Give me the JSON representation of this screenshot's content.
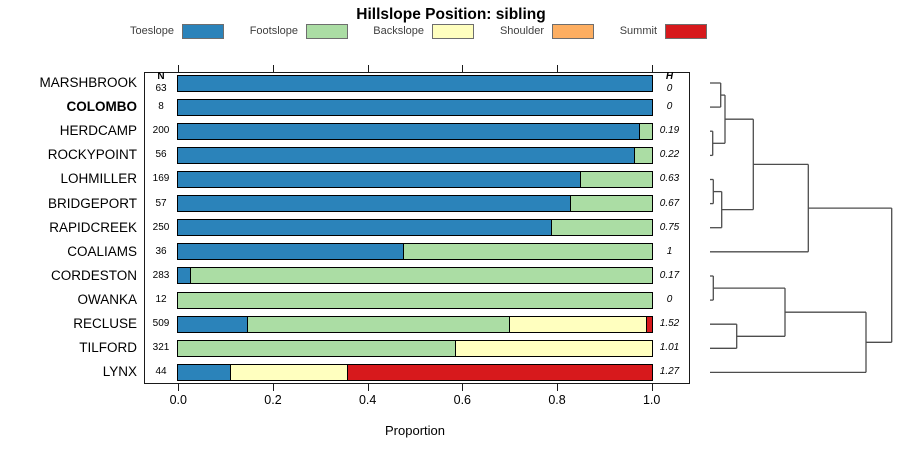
{
  "title": "Hillslope Position: sibling",
  "chart_data": {
    "type": "bar",
    "orientation": "horizontal-stacked",
    "title": "Hillslope Position: sibling",
    "xlabel": "Proportion",
    "xlim": [
      0,
      1
    ],
    "x_ticks": [
      "0.0",
      "0.2",
      "0.4",
      "0.6",
      "0.8",
      "1.0"
    ],
    "x_tick_values": [
      0,
      0.2,
      0.4,
      0.6,
      0.8,
      1.0
    ],
    "grid": false,
    "legend_position": "top",
    "classes": [
      {
        "label": "Toeslope",
        "color": "#2B83BA"
      },
      {
        "label": "Footslope",
        "color": "#ABDDA4"
      },
      {
        "label": "Backslope",
        "color": "#FFFFBF"
      },
      {
        "label": "Shoulder",
        "color": "#FDAE61"
      },
      {
        "label": "Summit",
        "color": "#D7191C"
      }
    ],
    "columns": {
      "n_header": "N",
      "h_header": "H"
    },
    "rows": [
      {
        "name": "MARSHBROOK",
        "bold": false,
        "n": 63,
        "h": "0",
        "proportions": [
          1,
          0,
          0,
          0,
          0
        ]
      },
      {
        "name": "COLOMBO",
        "bold": true,
        "n": 8,
        "h": "0",
        "proportions": [
          1,
          0,
          0,
          0,
          0
        ]
      },
      {
        "name": "HERDCAMP",
        "bold": false,
        "n": 200,
        "h": "0.19",
        "proportions": [
          0.975,
          0.025,
          0,
          0,
          0
        ]
      },
      {
        "name": "ROCKYPOINT",
        "bold": false,
        "n": 56,
        "h": "0.22",
        "proportions": [
          0.965,
          0.035,
          0,
          0,
          0
        ]
      },
      {
        "name": "LOHMILLER",
        "bold": false,
        "n": 169,
        "h": "0.63",
        "proportions": [
          0.85,
          0.15,
          0,
          0,
          0
        ]
      },
      {
        "name": "BRIDGEPORT",
        "bold": false,
        "n": 57,
        "h": "0.67",
        "proportions": [
          0.83,
          0.17,
          0,
          0,
          0
        ]
      },
      {
        "name": "RAPIDCREEK",
        "bold": false,
        "n": 250,
        "h": "0.75",
        "proportions": [
          0.79,
          0.21,
          0,
          0,
          0
        ]
      },
      {
        "name": "COALIAMS",
        "bold": false,
        "n": 36,
        "h": "1",
        "proportions": [
          0.475,
          0.525,
          0,
          0,
          0
        ]
      },
      {
        "name": "CORDESTON",
        "bold": false,
        "n": 283,
        "h": "0.17",
        "proportions": [
          0.025,
          0.975,
          0,
          0,
          0
        ]
      },
      {
        "name": "OWANKA",
        "bold": false,
        "n": 12,
        "h": "0",
        "proportions": [
          0,
          1,
          0,
          0,
          0
        ]
      },
      {
        "name": "RECLUSE",
        "bold": false,
        "n": 509,
        "h": "1.52",
        "proportions": [
          0.145,
          0.555,
          0.29,
          0,
          0.01
        ]
      },
      {
        "name": "TILFORD",
        "bold": false,
        "n": 321,
        "h": "1.01",
        "proportions": [
          0,
          0.585,
          0.415,
          0,
          0
        ]
      },
      {
        "name": "LYNX",
        "bold": false,
        "n": 44,
        "h": "1.27",
        "proportions": [
          0.11,
          0,
          0.245,
          0,
          0.645
        ]
      }
    ],
    "dendrogram": {
      "stroke": "#4d4d4d",
      "segments": [
        [
          10,
          23,
          20.7,
          23
        ],
        [
          10,
          47.1,
          20.7,
          47.1
        ],
        [
          20.7,
          23,
          20.7,
          47.1
        ],
        [
          20.7,
          35.1,
          25,
          35.1
        ],
        [
          10,
          71.2,
          12.7,
          71.2
        ],
        [
          10,
          95.4,
          12.7,
          95.4
        ],
        [
          12.7,
          71.2,
          12.7,
          95.4
        ],
        [
          12.7,
          83.3,
          25,
          83.3
        ],
        [
          25,
          35.1,
          25,
          83.3
        ],
        [
          25,
          59.2,
          53.3,
          59.2
        ],
        [
          10,
          119.5,
          13.3,
          119.5
        ],
        [
          10,
          143.6,
          13.3,
          143.6
        ],
        [
          13.3,
          119.5,
          13.3,
          143.6
        ],
        [
          13.3,
          131.6,
          21.7,
          131.6
        ],
        [
          10,
          167.7,
          21.7,
          167.7
        ],
        [
          21.7,
          131.6,
          21.7,
          167.7
        ],
        [
          21.7,
          149.6,
          53.3,
          149.6
        ],
        [
          53.3,
          59.2,
          53.3,
          149.6
        ],
        [
          53.3,
          104.4,
          108.3,
          104.4
        ],
        [
          10,
          191.8,
          108.3,
          191.8
        ],
        [
          108.3,
          104.4,
          108.3,
          191.8
        ],
        [
          108.3,
          148.1,
          191.7,
          148.1
        ],
        [
          10,
          216,
          13.3,
          216
        ],
        [
          10,
          240.1,
          13.3,
          240.1
        ],
        [
          13.3,
          216,
          13.3,
          240.1
        ],
        [
          13.3,
          228.1,
          85,
          228.1
        ],
        [
          10,
          264.2,
          36.7,
          264.2
        ],
        [
          10,
          288.3,
          36.7,
          288.3
        ],
        [
          36.7,
          264.2,
          36.7,
          288.3
        ],
        [
          36.7,
          276.3,
          85,
          276.3
        ],
        [
          85,
          228.1,
          85,
          276.3
        ],
        [
          85,
          252.2,
          166,
          252.2
        ],
        [
          10,
          312.4,
          166,
          312.4
        ],
        [
          166,
          252.2,
          166,
          312.4
        ],
        [
          166,
          282.3,
          191.7,
          282.3
        ],
        [
          191.7,
          148.1,
          191.7,
          282.3
        ]
      ]
    }
  }
}
